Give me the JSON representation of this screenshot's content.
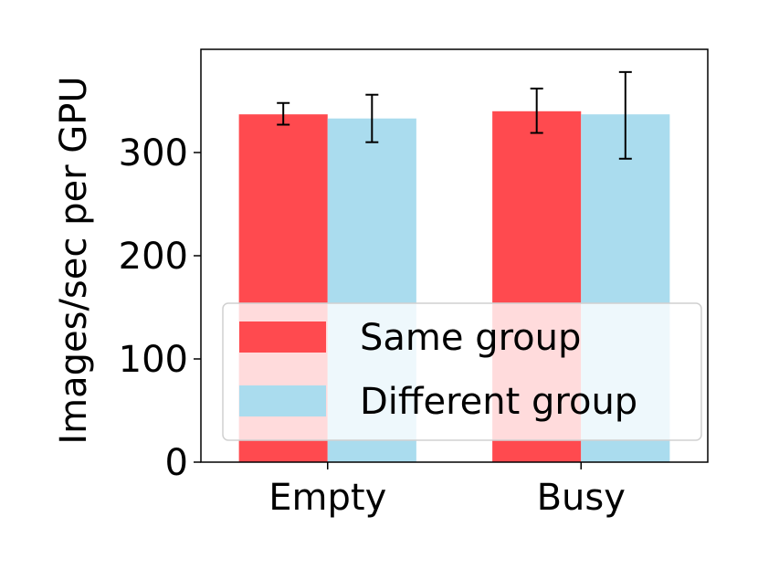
{
  "chart_data": {
    "type": "bar",
    "categories": [
      "Empty",
      "Busy"
    ],
    "ylabel": "Images/sec per GPU",
    "xlabel": "",
    "ylim": [
      0,
      400
    ],
    "yticks": [
      0,
      100,
      200,
      300
    ],
    "grid": false,
    "legend_position": "bottom-right",
    "series": [
      {
        "name": "Same group",
        "color": "#ff4a4f",
        "values": [
          337,
          340
        ],
        "error_low": [
          327,
          319
        ],
        "error_high": [
          348,
          362
        ]
      },
      {
        "name": "Different group",
        "color": "#aadcee",
        "values": [
          333,
          337
        ],
        "error_low": [
          310,
          294
        ],
        "error_high": [
          356,
          378
        ]
      }
    ]
  }
}
